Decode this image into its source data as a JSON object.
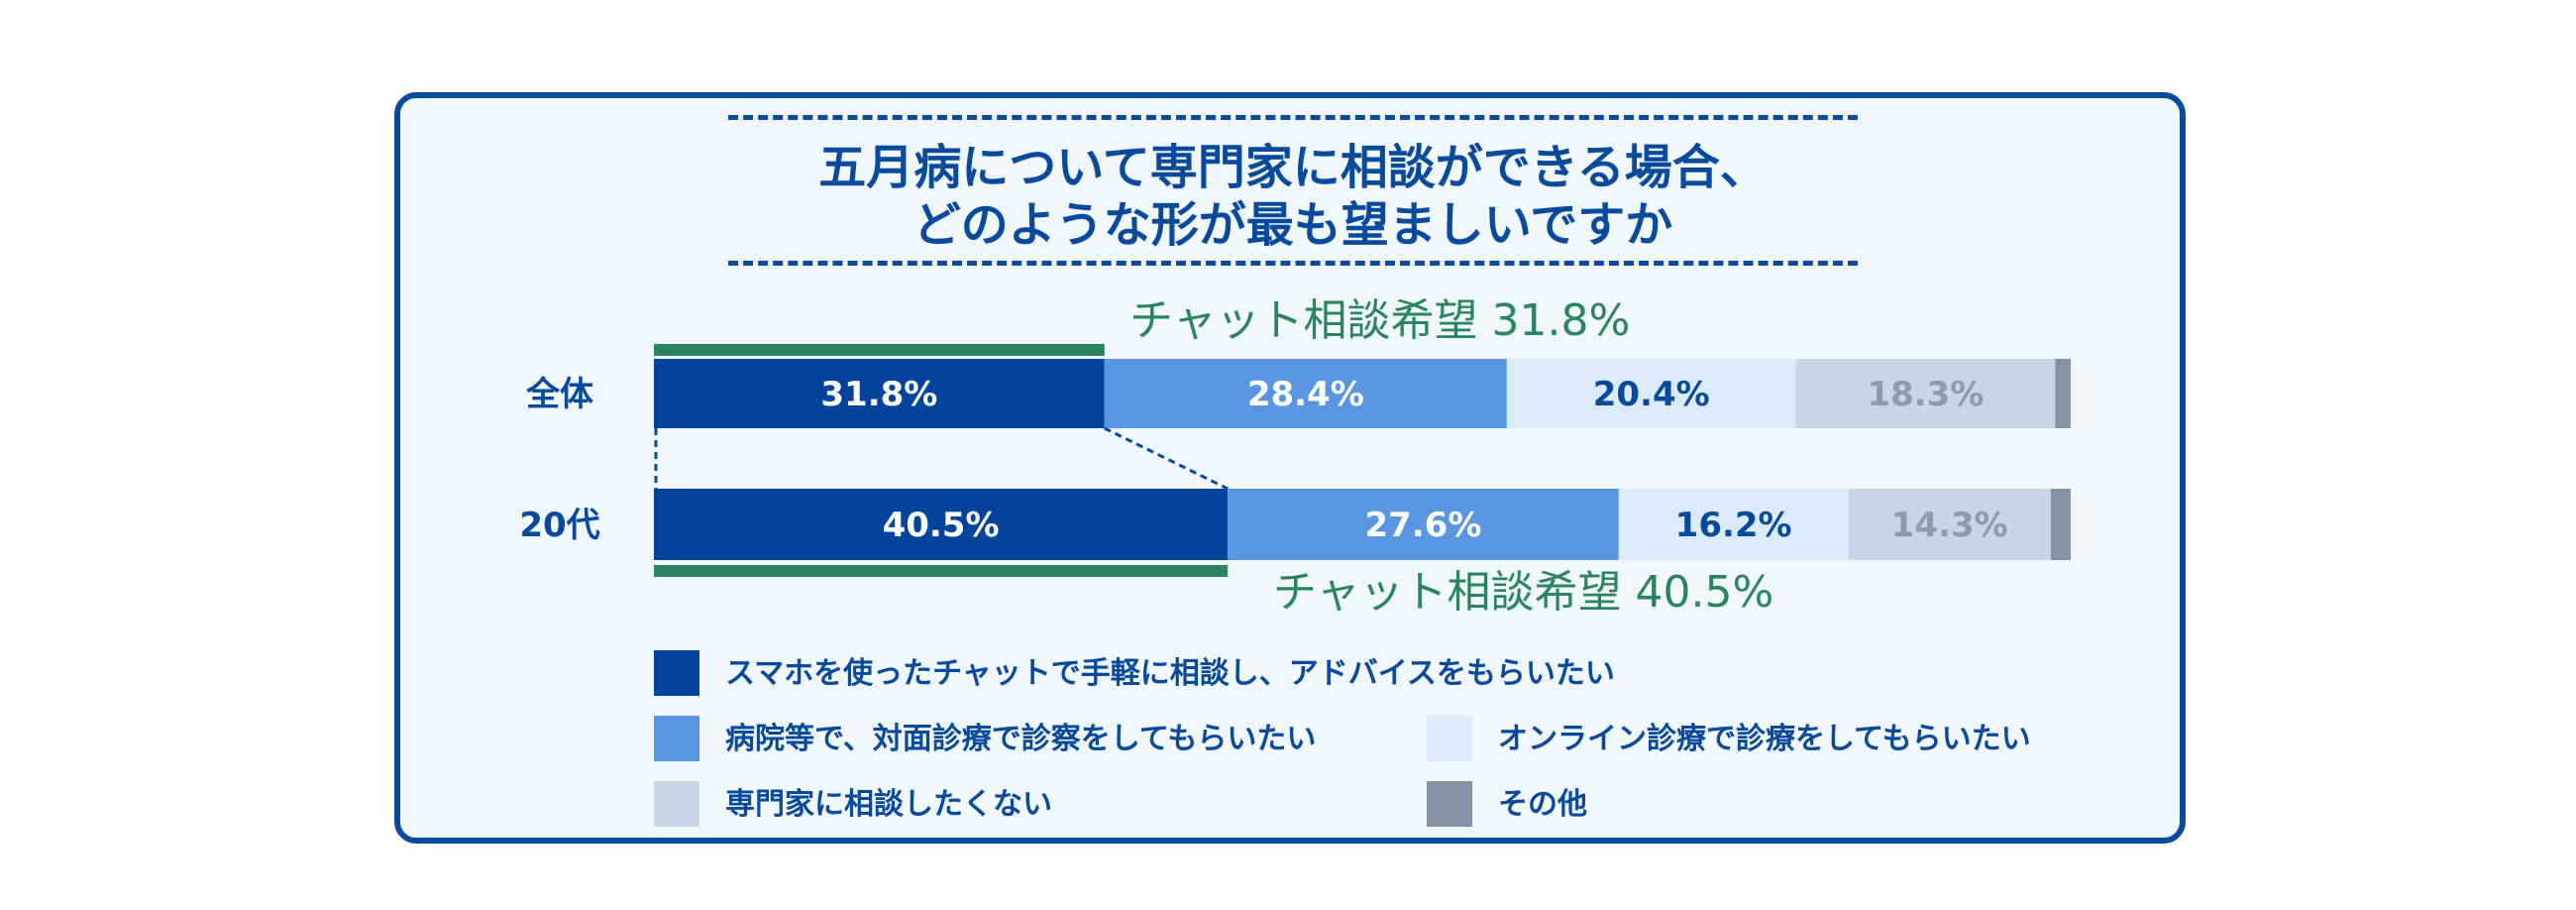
{
  "title": {
    "line1": "五月病について専門家に相談ができる場合、",
    "line2": "どのような形が最も望ましいですか"
  },
  "colors": {
    "card_border": "#0a4a9c",
    "card_bg": "#f0f7fd",
    "highlight": "#2a8460",
    "dash": "#0a4a9c",
    "text_dark": "#0a4a9c",
    "text_light": "#ffffff",
    "text_grey": "#8f9aab"
  },
  "chart_data": {
    "type": "bar",
    "orientation": "horizontal",
    "stacked": true,
    "normalized": true,
    "categories": [
      "全体",
      "20代"
    ],
    "series": [
      {
        "name": "スマホを使ったチャットで手軽に相談し、アドバイスをもらいたい",
        "values": [
          31.8,
          40.5
        ],
        "color": "#02449b",
        "label_color": "#ffffff",
        "label_values": [
          "31.8%",
          "40.5%"
        ]
      },
      {
        "name": "病院等で、対面診療で診察をしてもらいたい",
        "values": [
          28.4,
          27.6
        ],
        "color": "#5a96e0",
        "label_color": "#ffffff",
        "label_values": [
          "28.4%",
          "27.6%"
        ]
      },
      {
        "name": "オンライン診療で診療をしてもらいたい",
        "values": [
          20.4,
          16.2
        ],
        "color": "#dcebfb",
        "label_color": "#0a4a9c",
        "label_values": [
          "20.4%",
          "16.2%"
        ]
      },
      {
        "name": "専門家に相談したくない",
        "values": [
          18.3,
          14.3
        ],
        "color": "#c8d5e6",
        "label_color": "#8f9aab",
        "label_values": [
          "18.3%",
          "14.3%"
        ]
      },
      {
        "name": "その他",
        "values": [
          1.1,
          1.4
        ],
        "color": "#8593a6",
        "label_color": "#ffffff",
        "label_values": [
          "",
          ""
        ]
      }
    ],
    "annotations": [
      {
        "category": "全体",
        "text": "チャット相談希望 31.8%"
      },
      {
        "category": "20代",
        "text": "チャット相談希望 40.5%"
      }
    ],
    "legend_position": "bottom",
    "grid": false
  }
}
